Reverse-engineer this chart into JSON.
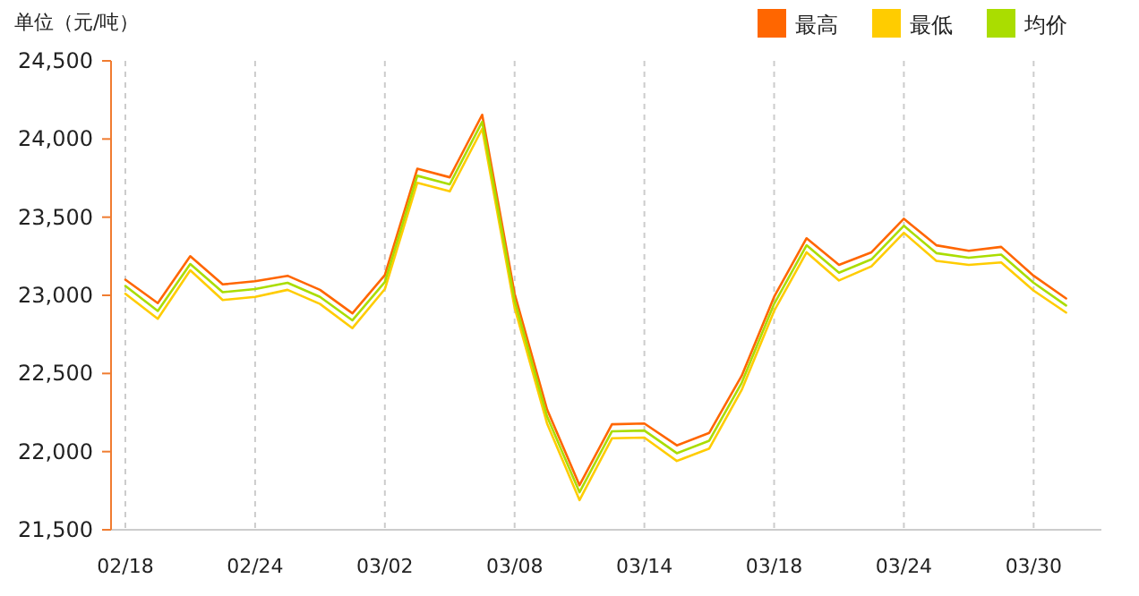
{
  "chart_data": {
    "type": "line",
    "ylabel": "单位（元/吨）",
    "categories": [
      "02/18",
      null,
      null,
      null,
      "02/24",
      null,
      null,
      null,
      "03/02",
      null,
      null,
      null,
      "03/08",
      null,
      null,
      null,
      "03/14",
      null,
      null,
      null,
      "03/18",
      null,
      null,
      null,
      "03/24",
      null,
      null,
      null,
      "03/30",
      null
    ],
    "series": [
      {
        "name": "最高",
        "color": "#ff6600",
        "values": [
          23100,
          22950,
          23250,
          23070,
          23090,
          23125,
          23035,
          22885,
          23130,
          23810,
          23755,
          24155,
          23010,
          22270,
          21785,
          22175,
          22180,
          22040,
          22120,
          22485,
          22990,
          23365,
          23195,
          23275,
          23490,
          23320,
          23285,
          23310,
          23125,
          22980
        ]
      },
      {
        "name": "最低",
        "color": "#ffcc00",
        "values": [
          23010,
          22850,
          23160,
          22970,
          22990,
          23035,
          22945,
          22790,
          23040,
          23720,
          23665,
          24065,
          22920,
          22180,
          21690,
          22085,
          22090,
          21940,
          22020,
          22395,
          22900,
          23275,
          23095,
          23185,
          23400,
          23220,
          23195,
          23210,
          23030,
          22890
        ]
      },
      {
        "name": "均价",
        "color": "#aadd00",
        "values": [
          23060,
          22900,
          23200,
          23020,
          23040,
          23080,
          22990,
          22840,
          23085,
          23765,
          23710,
          24110,
          22965,
          22225,
          21740,
          22130,
          22135,
          21990,
          22070,
          22440,
          22945,
          23320,
          23145,
          23230,
          23445,
          23270,
          23240,
          23260,
          23080,
          22935
        ]
      }
    ],
    "ylim": [
      21500,
      24500
    ],
    "yticks": [
      {
        "value": 21500,
        "label": "21,500"
      },
      {
        "value": 22000,
        "label": "22,000"
      },
      {
        "value": 22500,
        "label": "22,500"
      },
      {
        "value": 23000,
        "label": "23,000"
      },
      {
        "value": 23500,
        "label": "23,500"
      },
      {
        "value": 24000,
        "label": "24,000"
      },
      {
        "value": 24500,
        "label": "24,500"
      }
    ],
    "grid": "x",
    "legend": "top right",
    "marker": "none",
    "line_style": "solid"
  }
}
